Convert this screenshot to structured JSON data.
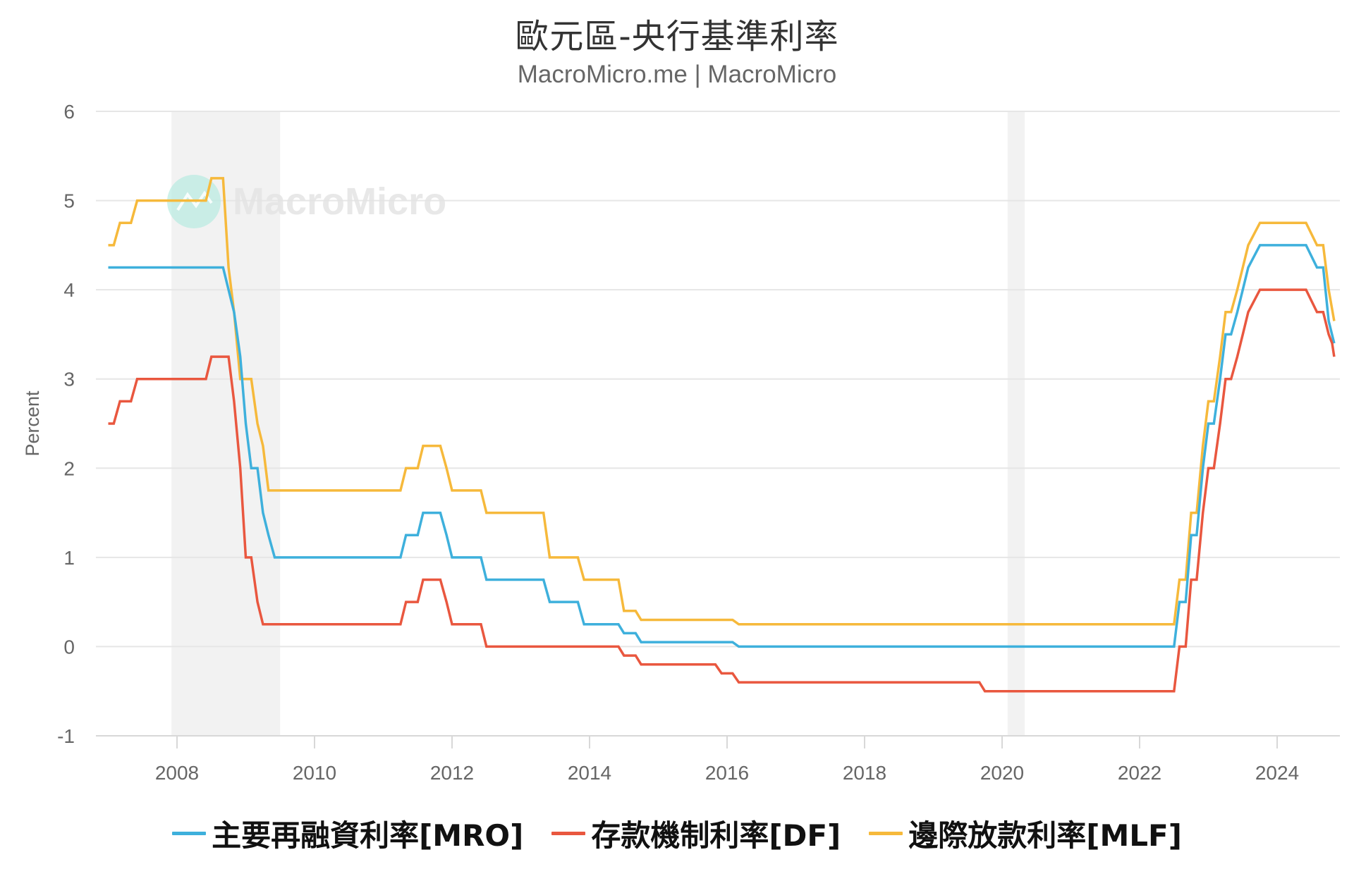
{
  "header": {
    "title": "歐元區-央行基準利率",
    "subtitle": "MacroMicro.me | MacroMicro"
  },
  "watermark": {
    "text": "MacroMicro",
    "icon": "macromicro-logo-icon"
  },
  "legend": [
    {
      "label": "主要再融資利率[MRO]",
      "color": "#3eb0dc"
    },
    {
      "label": "存款機制利率[DF]",
      "color": "#e9573f"
    },
    {
      "label": "邊際放款利率[MLF]",
      "color": "#f6b93b"
    }
  ],
  "chart_data": {
    "type": "line",
    "title": "歐元區-央行基準利率",
    "subtitle": "MacroMicro.me | MacroMicro",
    "xlabel": "",
    "ylabel": "Percent",
    "ylim": [
      -1,
      6
    ],
    "yticks": [
      "-1",
      "0",
      "1",
      "2",
      "3",
      "4",
      "5",
      "6"
    ],
    "xlim": [
      2006.82,
      2025.0
    ],
    "xticks": [
      "2008",
      "2010",
      "2012",
      "2014",
      "2016",
      "2018",
      "2020",
      "2022",
      "2024"
    ],
    "grid": true,
    "legend_position": "bottom",
    "shaded_regions": [
      {
        "from": 2007.92,
        "to": 2009.5
      },
      {
        "from": 2020.08,
        "to": 2020.33
      }
    ],
    "series": [
      {
        "name": "主要再融資利率[MRO]",
        "color": "#3eb0dc",
        "points": [
          [
            2007.0,
            4.25
          ],
          [
            2008.67,
            4.25
          ],
          [
            2008.83,
            3.75
          ],
          [
            2008.92,
            3.25
          ],
          [
            2009.0,
            2.5
          ],
          [
            2009.08,
            2.0
          ],
          [
            2009.17,
            2.0
          ],
          [
            2009.25,
            1.5
          ],
          [
            2009.33,
            1.25
          ],
          [
            2009.42,
            1.0
          ],
          [
            2011.25,
            1.0
          ],
          [
            2011.33,
            1.25
          ],
          [
            2011.5,
            1.25
          ],
          [
            2011.58,
            1.5
          ],
          [
            2011.83,
            1.5
          ],
          [
            2011.92,
            1.25
          ],
          [
            2012.0,
            1.0
          ],
          [
            2012.42,
            1.0
          ],
          [
            2012.5,
            0.75
          ],
          [
            2013.33,
            0.75
          ],
          [
            2013.42,
            0.5
          ],
          [
            2013.83,
            0.5
          ],
          [
            2013.92,
            0.25
          ],
          [
            2014.42,
            0.25
          ],
          [
            2014.5,
            0.15
          ],
          [
            2014.67,
            0.15
          ],
          [
            2014.75,
            0.05
          ],
          [
            2016.08,
            0.05
          ],
          [
            2016.17,
            0.0
          ],
          [
            2022.5,
            0.0
          ],
          [
            2022.58,
            0.5
          ],
          [
            2022.67,
            0.5
          ],
          [
            2022.75,
            1.25
          ],
          [
            2022.83,
            1.25
          ],
          [
            2022.92,
            2.0
          ],
          [
            2023.0,
            2.5
          ],
          [
            2023.08,
            2.5
          ],
          [
            2023.17,
            3.0
          ],
          [
            2023.25,
            3.5
          ],
          [
            2023.33,
            3.5
          ],
          [
            2023.42,
            3.75
          ],
          [
            2023.5,
            4.0
          ],
          [
            2023.58,
            4.25
          ],
          [
            2023.75,
            4.5
          ],
          [
            2024.42,
            4.5
          ],
          [
            2024.58,
            4.25
          ],
          [
            2024.67,
            4.25
          ],
          [
            2024.75,
            3.65
          ],
          [
            2024.83,
            3.4
          ]
        ]
      },
      {
        "name": "存款機制利率[DF]",
        "color": "#e9573f",
        "points": [
          [
            2007.0,
            2.5
          ],
          [
            2007.08,
            2.5
          ],
          [
            2007.17,
            2.75
          ],
          [
            2007.33,
            2.75
          ],
          [
            2007.42,
            3.0
          ],
          [
            2008.42,
            3.0
          ],
          [
            2008.5,
            3.25
          ],
          [
            2008.75,
            3.25
          ],
          [
            2008.83,
            2.75
          ],
          [
            2008.92,
            2.0
          ],
          [
            2009.0,
            1.0
          ],
          [
            2009.08,
            1.0
          ],
          [
            2009.17,
            0.5
          ],
          [
            2009.25,
            0.25
          ],
          [
            2011.25,
            0.25
          ],
          [
            2011.33,
            0.5
          ],
          [
            2011.5,
            0.5
          ],
          [
            2011.58,
            0.75
          ],
          [
            2011.83,
            0.75
          ],
          [
            2011.92,
            0.5
          ],
          [
            2012.0,
            0.25
          ],
          [
            2012.42,
            0.25
          ],
          [
            2012.5,
            0.0
          ],
          [
            2014.42,
            0.0
          ],
          [
            2014.5,
            -0.1
          ],
          [
            2014.67,
            -0.1
          ],
          [
            2014.75,
            -0.2
          ],
          [
            2015.83,
            -0.2
          ],
          [
            2015.92,
            -0.3
          ],
          [
            2016.08,
            -0.3
          ],
          [
            2016.17,
            -0.4
          ],
          [
            2019.67,
            -0.4
          ],
          [
            2019.75,
            -0.5
          ],
          [
            2022.5,
            -0.5
          ],
          [
            2022.58,
            0.0
          ],
          [
            2022.67,
            0.0
          ],
          [
            2022.75,
            0.75
          ],
          [
            2022.83,
            0.75
          ],
          [
            2022.92,
            1.5
          ],
          [
            2023.0,
            2.0
          ],
          [
            2023.08,
            2.0
          ],
          [
            2023.17,
            2.5
          ],
          [
            2023.25,
            3.0
          ],
          [
            2023.33,
            3.0
          ],
          [
            2023.42,
            3.25
          ],
          [
            2023.5,
            3.5
          ],
          [
            2023.58,
            3.75
          ],
          [
            2023.75,
            4.0
          ],
          [
            2024.42,
            4.0
          ],
          [
            2024.58,
            3.75
          ],
          [
            2024.67,
            3.75
          ],
          [
            2024.75,
            3.5
          ],
          [
            2024.8,
            3.4
          ],
          [
            2024.83,
            3.25
          ]
        ]
      },
      {
        "name": "邊際放款利率[MLF]",
        "color": "#f6b93b",
        "points": [
          [
            2007.0,
            4.5
          ],
          [
            2007.08,
            4.5
          ],
          [
            2007.17,
            4.75
          ],
          [
            2007.33,
            4.75
          ],
          [
            2007.42,
            5.0
          ],
          [
            2008.42,
            5.0
          ],
          [
            2008.5,
            5.25
          ],
          [
            2008.67,
            5.25
          ],
          [
            2008.75,
            4.25
          ],
          [
            2008.83,
            3.75
          ],
          [
            2008.92,
            3.0
          ],
          [
            2009.08,
            3.0
          ],
          [
            2009.17,
            2.5
          ],
          [
            2009.25,
            2.25
          ],
          [
            2009.33,
            1.75
          ],
          [
            2011.25,
            1.75
          ],
          [
            2011.33,
            2.0
          ],
          [
            2011.5,
            2.0
          ],
          [
            2011.58,
            2.25
          ],
          [
            2011.83,
            2.25
          ],
          [
            2011.92,
            2.0
          ],
          [
            2012.0,
            1.75
          ],
          [
            2012.42,
            1.75
          ],
          [
            2012.5,
            1.5
          ],
          [
            2013.33,
            1.5
          ],
          [
            2013.42,
            1.0
          ],
          [
            2013.83,
            1.0
          ],
          [
            2013.92,
            0.75
          ],
          [
            2014.42,
            0.75
          ],
          [
            2014.5,
            0.4
          ],
          [
            2014.67,
            0.4
          ],
          [
            2014.75,
            0.3
          ],
          [
            2016.08,
            0.3
          ],
          [
            2016.17,
            0.25
          ],
          [
            2022.5,
            0.25
          ],
          [
            2022.58,
            0.75
          ],
          [
            2022.67,
            0.75
          ],
          [
            2022.75,
            1.5
          ],
          [
            2022.83,
            1.5
          ],
          [
            2022.92,
            2.25
          ],
          [
            2023.0,
            2.75
          ],
          [
            2023.08,
            2.75
          ],
          [
            2023.17,
            3.25
          ],
          [
            2023.25,
            3.75
          ],
          [
            2023.33,
            3.75
          ],
          [
            2023.42,
            4.0
          ],
          [
            2023.5,
            4.25
          ],
          [
            2023.58,
            4.5
          ],
          [
            2023.75,
            4.75
          ],
          [
            2024.42,
            4.75
          ],
          [
            2024.58,
            4.5
          ],
          [
            2024.67,
            4.5
          ],
          [
            2024.75,
            4.0
          ],
          [
            2024.83,
            3.65
          ]
        ]
      }
    ]
  }
}
